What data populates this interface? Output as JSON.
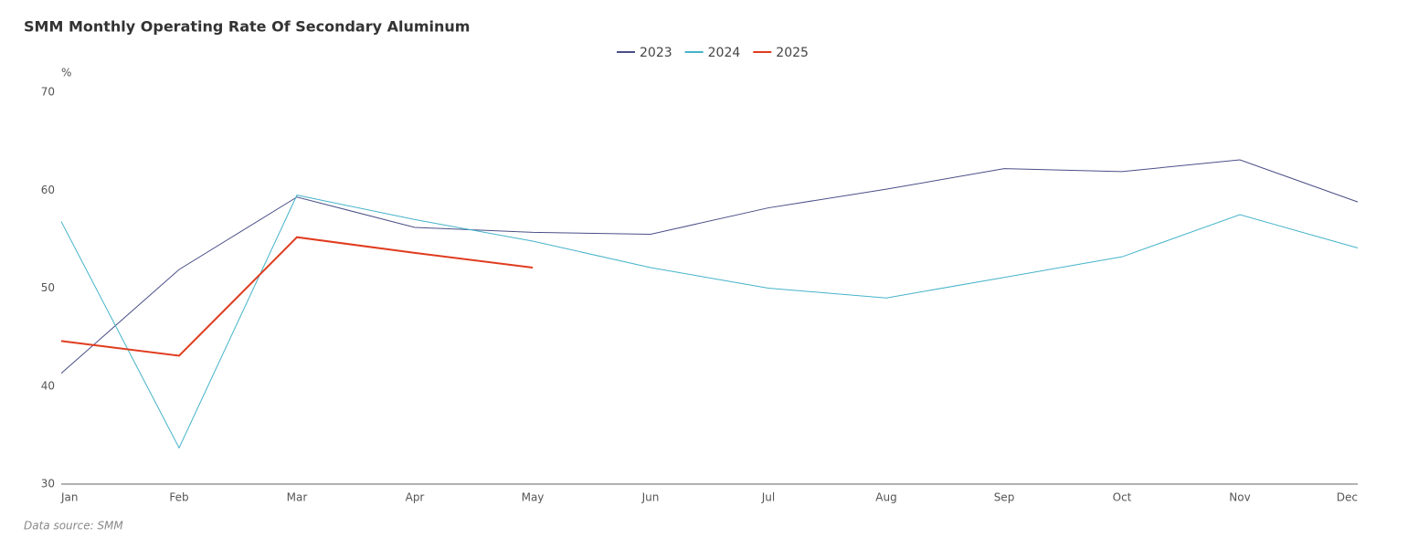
{
  "chart_data": {
    "type": "line",
    "title": "SMM Monthly Operating Rate Of Secondary Aluminum",
    "y_unit": "%",
    "source": "Data source:  SMM",
    "categories": [
      "Jan",
      "Feb",
      "Mar",
      "Apr",
      "May",
      "Jun",
      "Jul",
      "Aug",
      "Sep",
      "Oct",
      "Nov",
      "Dec"
    ],
    "series": [
      {
        "name": "2023",
        "color": "#4a4f86",
        "values": [
          41.3,
          51.9,
          59.3,
          56.2,
          55.7,
          55.5,
          58.2,
          60.1,
          62.2,
          61.9,
          63.1,
          58.8
        ]
      },
      {
        "name": "2024",
        "color": "#45b3c9",
        "values": [
          56.8,
          33.7,
          59.5,
          57.0,
          54.8,
          52.1,
          50.0,
          49.0,
          51.1,
          53.2,
          57.5,
          54.1
        ]
      },
      {
        "name": "2025",
        "color": "#e03c1f",
        "values": [
          44.6,
          43.1,
          55.2,
          53.6,
          52.1,
          null,
          null,
          null,
          null,
          null,
          null,
          null
        ]
      }
    ],
    "ylim": [
      30,
      70
    ],
    "yticks": [
      30,
      40,
      50,
      60,
      70
    ],
    "grid": false,
    "legend": "top"
  }
}
